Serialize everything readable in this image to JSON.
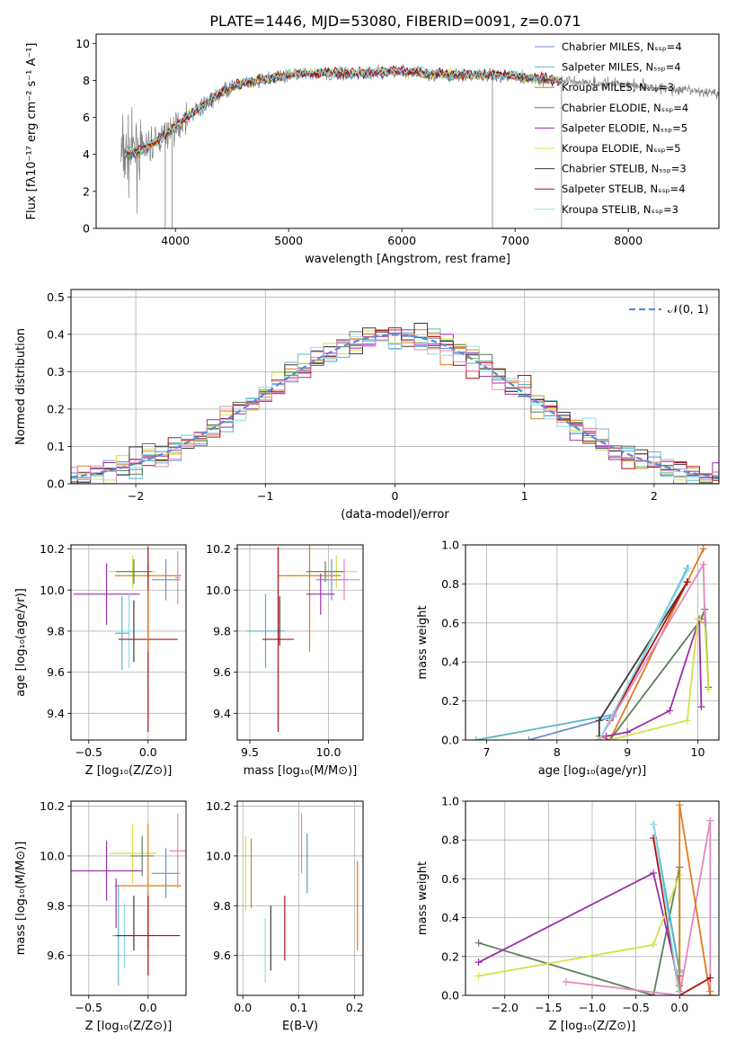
{
  "figure": {
    "title": "PLATE=1446, MJD=53080, FIBERID=0091, z=0.071"
  },
  "colors": [
    "#6f8fd1",
    "#59b6c6",
    "#e07b1d",
    "#5b7f5b",
    "#9b2ea8",
    "#d6e046",
    "#3a3a3a",
    "#b01010",
    "#8fdde6",
    "#e287bd",
    "#808080"
  ],
  "chart_data": [
    {
      "id": "spectrum",
      "type": "line",
      "xlabel": "wavelength [Angstrom, rest frame]",
      "ylabel": "Flux [fλ10⁻¹⁷ erg cm⁻² s⁻¹ A⁻¹]",
      "xlim": [
        3300,
        8800
      ],
      "ylim": [
        0,
        10.5
      ],
      "xticks": [
        4000,
        5000,
        6000,
        7000,
        8000
      ],
      "yticks": [
        0,
        2,
        4,
        6,
        8,
        10
      ],
      "grid": false,
      "legend": "upper right",
      "data_color": "#808080",
      "data_envelope": {
        "x": [
          3550,
          3700,
          3900,
          4100,
          4300,
          4500,
          4800,
          5000,
          5300,
          5600,
          6000,
          6400,
          6800,
          7200,
          7600,
          8000,
          8400,
          8800
        ],
        "y": [
          4.0,
          4.2,
          5.0,
          6.0,
          6.9,
          7.7,
          8.1,
          8.3,
          8.4,
          8.4,
          8.5,
          8.3,
          8.3,
          8.1,
          7.9,
          7.8,
          7.5,
          7.3
        ]
      },
      "series": [
        {
          "name": "Chabrier MILES, N_SSP=4",
          "color": "#6f8fd1"
        },
        {
          "name": "Salpeter MILES, N_SSP=4",
          "color": "#59b6c6"
        },
        {
          "name": "Kroupa MILES, N_SSP=3",
          "color": "#e07b1d"
        },
        {
          "name": "Chabrier ELODIE, N_SSP=4",
          "color": "#5b7f5b"
        },
        {
          "name": "Salpeter ELODIE, N_SSP=5",
          "color": "#9b2ea8"
        },
        {
          "name": "Kroupa ELODIE, N_SSP=5",
          "color": "#d6e046"
        },
        {
          "name": "Chabrier STELIB, N_SSP=3",
          "color": "#3a3a3a"
        },
        {
          "name": "Salpeter STELIB, N_SSP=4",
          "color": "#b01010"
        },
        {
          "name": "Kroupa STELIB, N_SSP=3",
          "color": "#8fdde6"
        }
      ]
    },
    {
      "id": "residuals",
      "type": "line",
      "xlabel": "(data-model)/error",
      "ylabel": "Normed distribution",
      "xlim": [
        -2.5,
        2.5
      ],
      "ylim": [
        0,
        0.52
      ],
      "xticks": [
        -2,
        -1,
        0,
        1,
        2
      ],
      "yticks": [
        0.0,
        0.1,
        0.2,
        0.3,
        0.4,
        0.5
      ],
      "grid": true,
      "legend": "upper right",
      "reference": {
        "name": "𝒩(0, 1)",
        "color": "#5a8ad8",
        "mean": 0,
        "sigma": 1
      },
      "bin_width": 0.1,
      "hist_colors": [
        "#6f8fd1",
        "#59b6c6",
        "#e07b1d",
        "#5b7f5b",
        "#9b2ea8",
        "#d6e046",
        "#3a3a3a",
        "#b01010",
        "#8fdde6",
        "#e287bd"
      ]
    },
    {
      "id": "age_vs_Z",
      "type": "scatter",
      "xlabel": "Z [log₁₀(Z/Z⊙)]",
      "ylabel": "age  [log₁₀(age/yr)]",
      "xlim": [
        -0.65,
        0.32
      ],
      "ylim": [
        9.27,
        10.22
      ],
      "xticks": [
        -0.5,
        0.0
      ],
      "yticks": [
        9.4,
        9.6,
        9.8,
        10.0,
        10.2
      ],
      "grid": true,
      "points": [
        {
          "x": -0.13,
          "y": 10.09,
          "xerr": 0.2,
          "yerr": 0.08,
          "color": "#d6e046"
        },
        {
          "x": 0.0,
          "y": 10.07,
          "xerr": 0.28,
          "yerr": 0.06,
          "color": "#e07b1d"
        },
        {
          "x": -0.12,
          "y": 10.09,
          "xerr": 0.15,
          "yerr": 0.06,
          "color": "#5b7f5b"
        },
        {
          "x": 0.15,
          "y": 10.05,
          "xerr": 0.12,
          "yerr": 0.1,
          "color": "#6f8fd1"
        },
        {
          "x": -0.35,
          "y": 9.98,
          "xerr": 0.28,
          "yerr": 0.15,
          "color": "#9b2ea8"
        },
        {
          "x": 0.25,
          "y": 10.06,
          "xerr": 0.02,
          "yerr": 0.13,
          "color": "#e287bd"
        },
        {
          "x": -0.16,
          "y": 9.8,
          "xerr": 0.12,
          "yerr": 0.18,
          "color": "#8fdde6"
        },
        {
          "x": -0.22,
          "y": 9.79,
          "xerr": 0.06,
          "yerr": 0.18,
          "color": "#59b6c6"
        },
        {
          "x": -0.12,
          "y": 9.8,
          "xerr": 0.0,
          "yerr": 0.15,
          "color": "#3a3a3a"
        },
        {
          "x": 0.0,
          "y": 9.76,
          "xerr": 0.25,
          "yerr": 0.45,
          "color": "#b01010"
        },
        {
          "x": 0.0,
          "y": 9.85,
          "xerr": 0.0,
          "yerr": 0.15,
          "color": "#e07b1d"
        }
      ]
    },
    {
      "id": "age_vs_mass",
      "type": "scatter",
      "xlabel": "mass [log₁₀(M/M⊙)]",
      "ylabel": "",
      "xlim": [
        9.42,
        10.22
      ],
      "ylim": [
        9.27,
        10.22
      ],
      "xticks": [
        9.5,
        10.0
      ],
      "yticks": [
        9.4,
        9.6,
        9.8,
        10.0,
        10.2
      ],
      "grid": true,
      "points": [
        {
          "x": 10.05,
          "y": 10.09,
          "xerr": 0.13,
          "yerr": 0.08,
          "color": "#d6e046"
        },
        {
          "x": 9.88,
          "y": 10.07,
          "xerr": 0.2,
          "yerr": 0.37,
          "color": "#e07b1d"
        },
        {
          "x": 9.98,
          "y": 10.09,
          "xerr": 0.12,
          "yerr": 0.05,
          "color": "#5b7f5b"
        },
        {
          "x": 10.02,
          "y": 10.05,
          "xerr": 0.1,
          "yerr": 0.1,
          "color": "#6f8fd1"
        },
        {
          "x": 9.95,
          "y": 9.98,
          "xerr": 0.09,
          "yerr": 0.1,
          "color": "#9b2ea8"
        },
        {
          "x": 10.1,
          "y": 10.05,
          "xerr": 0.1,
          "yerr": 0.1,
          "color": "#e287bd"
        },
        {
          "x": 9.6,
          "y": 9.8,
          "xerr": 0.12,
          "yerr": 0.18,
          "color": "#8fdde6"
        },
        {
          "x": 9.6,
          "y": 9.8,
          "xerr": 0.12,
          "yerr": 0.18,
          "color": "#59b6c6"
        },
        {
          "x": 9.69,
          "y": 9.85,
          "xerr": 0.0,
          "yerr": 0.12,
          "color": "#3a3a3a"
        },
        {
          "x": 9.68,
          "y": 9.76,
          "xerr": 0.1,
          "yerr": 0.45,
          "color": "#b01010"
        }
      ]
    },
    {
      "id": "massweight_vs_age",
      "type": "line",
      "xlabel": "age  [log₁₀(age/yr)]",
      "ylabel": "mass weight",
      "xlim": [
        6.7,
        10.3
      ],
      "ylim": [
        0,
        1
      ],
      "xticks": [
        7,
        8,
        9,
        10
      ],
      "yticks": [
        0.0,
        0.2,
        0.4,
        0.6,
        0.8,
        1.0
      ],
      "grid": true,
      "series": [
        {
          "color": "#6f8fd1",
          "x": [
            7.6,
            8.8,
            9.85
          ],
          "y": [
            0.0,
            0.12,
            0.88
          ]
        },
        {
          "color": "#59b6c6",
          "x": [
            6.85,
            8.8,
            9.85
          ],
          "y": [
            0.0,
            0.13,
            0.88
          ]
        },
        {
          "color": "#e07b1d",
          "x": [
            8.6,
            8.75,
            10.08
          ],
          "y": [
            0.02,
            0.0,
            0.98
          ]
        },
        {
          "color": "#5b7f5b",
          "x": [
            8.75,
            10.05,
            10.1,
            10.15
          ],
          "y": [
            0.0,
            0.62,
            0.67,
            0.27
          ]
        },
        {
          "color": "#9b2ea8",
          "x": [
            8.7,
            9.0,
            9.6,
            10.02,
            10.05
          ],
          "y": [
            0.02,
            0.04,
            0.15,
            0.62,
            0.17
          ]
        },
        {
          "color": "#d6e046",
          "x": [
            8.75,
            9.85,
            10.0,
            10.1,
            10.15
          ],
          "y": [
            0.0,
            0.1,
            0.62,
            0.6,
            0.26
          ]
        },
        {
          "color": "#3a3a3a",
          "x": [
            8.6,
            8.6,
            9.85
          ],
          "y": [
            0.0,
            0.1,
            0.81
          ]
        },
        {
          "color": "#b01010",
          "x": [
            8.6,
            8.75,
            9.85
          ],
          "y": [
            0.0,
            0.1,
            0.81
          ]
        },
        {
          "color": "#e287bd",
          "x": [
            8.6,
            10.08,
            10.1
          ],
          "y": [
            0.0,
            0.9,
            0.6
          ]
        },
        {
          "color": "#8fdde6",
          "x": [
            8.6,
            9.87
          ],
          "y": [
            0.0,
            0.88
          ]
        }
      ]
    },
    {
      "id": "mass_vs_Z",
      "type": "scatter",
      "xlabel": "Z [log₁₀(Z/Z⊙)]",
      "ylabel": "mass [log₁₀(M/M⊙)]",
      "xlim": [
        -0.65,
        0.32
      ],
      "ylim": [
        9.44,
        10.22
      ],
      "xticks": [
        -0.5,
        0.0
      ],
      "yticks": [
        9.6,
        9.8,
        10.0,
        10.2
      ],
      "grid": true,
      "points": [
        {
          "x": -0.13,
          "y": 10.01,
          "xerr": 0.2,
          "yerr": 0.12,
          "color": "#d6e046"
        },
        {
          "x": -0.05,
          "y": 10.0,
          "xerr": 0.1,
          "yerr": 0.08,
          "color": "#5b7f5b"
        },
        {
          "x": 0.0,
          "y": 9.88,
          "xerr": 0.28,
          "yerr": 0.25,
          "color": "#e07b1d"
        },
        {
          "x": 0.15,
          "y": 9.93,
          "xerr": 0.12,
          "yerr": 0.1,
          "color": "#6f8fd1"
        },
        {
          "x": -0.35,
          "y": 9.94,
          "xerr": 0.3,
          "yerr": 0.12,
          "color": "#9b2ea8"
        },
        {
          "x": 0.25,
          "y": 10.02,
          "xerr": 0.07,
          "yerr": 0.15,
          "color": "#e287bd"
        },
        {
          "x": -0.2,
          "y": 9.68,
          "xerr": 0.1,
          "yerr": 0.13,
          "color": "#8fdde6"
        },
        {
          "x": -0.25,
          "y": 9.68,
          "xerr": 0.05,
          "yerr": 0.2,
          "color": "#59b6c6"
        },
        {
          "x": -0.12,
          "y": 9.73,
          "xerr": 0.0,
          "yerr": 0.11,
          "color": "#3a3a3a"
        },
        {
          "x": 0.0,
          "y": 9.68,
          "xerr": 0.27,
          "yerr": 0.16,
          "color": "#b01010"
        },
        {
          "x": -0.27,
          "y": 9.81,
          "xerr": 0.0,
          "yerr": 0.1,
          "color": "#9b2ea8"
        }
      ]
    },
    {
      "id": "mass_vs_ebv",
      "type": "scatter",
      "xlabel": "E(B-V)",
      "ylabel": "",
      "xlim": [
        -0.01,
        0.215
      ],
      "ylim": [
        9.44,
        10.22
      ],
      "xticks": [
        0.0,
        0.1,
        0.2
      ],
      "yticks": [
        9.6,
        9.8,
        10.0,
        10.2
      ],
      "grid": true,
      "points": [
        {
          "x": 0.005,
          "y": 9.93,
          "xerr": 0,
          "yerr": 0.15,
          "color": "#d6e046"
        },
        {
          "x": 0.015,
          "y": 9.93,
          "xerr": 0,
          "yerr": 0.14,
          "color": "#e07b1d"
        },
        {
          "x": 0.04,
          "y": 9.62,
          "xerr": 0,
          "yerr": 0.13,
          "color": "#8fdde6"
        },
        {
          "x": 0.05,
          "y": 9.67,
          "xerr": 0,
          "yerr": 0.13,
          "color": "#3a3a3a"
        },
        {
          "x": 0.075,
          "y": 9.71,
          "xerr": 0,
          "yerr": 0.13,
          "color": "#b01010"
        },
        {
          "x": 0.105,
          "y": 10.05,
          "xerr": 0,
          "yerr": 0.12,
          "color": "#e287bd"
        },
        {
          "x": 0.115,
          "y": 9.97,
          "xerr": 0,
          "yerr": 0.12,
          "color": "#6f8fd1"
        },
        {
          "x": 0.205,
          "y": 9.8,
          "xerr": 0,
          "yerr": 0.18,
          "color": "#e07b1d"
        }
      ]
    },
    {
      "id": "massweight_vs_Z",
      "type": "line",
      "xlabel": "Z [log₁₀(Z/Z⊙)]",
      "ylabel": "mass weight",
      "xlim": [
        -2.45,
        0.45
      ],
      "ylim": [
        0,
        1
      ],
      "xticks": [
        -2.0,
        -1.5,
        -1.0,
        -0.5,
        0.0
      ],
      "yticks": [
        0.0,
        0.2,
        0.4,
        0.6,
        0.8,
        1.0
      ],
      "grid": true,
      "series": [
        {
          "color": "#5b7f5b",
          "x": [
            -2.3,
            -0.3,
            0.0,
            0.0
          ],
          "y": [
            0.27,
            0.0,
            0.66,
            0.0
          ]
        },
        {
          "color": "#9b2ea8",
          "x": [
            -2.3,
            -0.3,
            0.0,
            0.0
          ],
          "y": [
            0.17,
            0.63,
            0.05,
            0.1
          ]
        },
        {
          "color": "#d6e046",
          "x": [
            -2.3,
            -0.3,
            0.0,
            0.0
          ],
          "y": [
            0.1,
            0.26,
            0.62,
            0.0
          ]
        },
        {
          "color": "#e287bd",
          "x": [
            -1.3,
            0.0,
            0.35,
            0.35
          ],
          "y": [
            0.07,
            0.0,
            0.9,
            0.0
          ]
        },
        {
          "color": "#6f8fd1",
          "x": [
            -0.3,
            0.0
          ],
          "y": [
            0.88,
            0.12
          ]
        },
        {
          "color": "#59b6c6",
          "x": [
            -0.3,
            0.0
          ],
          "y": [
            0.88,
            0.13
          ]
        },
        {
          "color": "#e07b1d",
          "x": [
            0.0,
            0.0,
            0.35,
            0.35
          ],
          "y": [
            0.02,
            0.98,
            0.0,
            0.02
          ]
        },
        {
          "color": "#b01010",
          "x": [
            -0.3,
            0.0,
            0.35
          ],
          "y": [
            0.81,
            0.0,
            0.09
          ]
        },
        {
          "color": "#8fdde6",
          "x": [
            -0.3,
            0.0
          ],
          "y": [
            0.88,
            0.0
          ]
        }
      ]
    }
  ]
}
